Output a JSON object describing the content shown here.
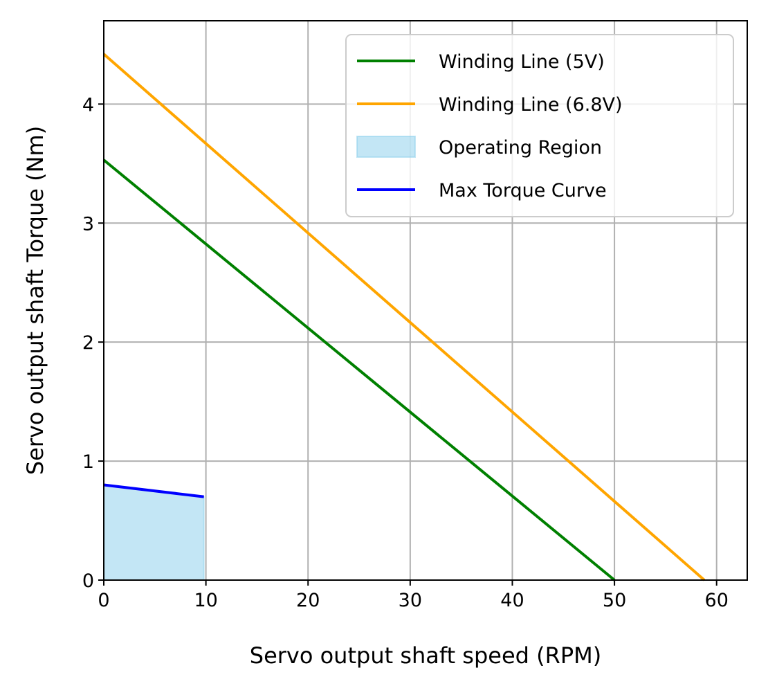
{
  "chart_data": {
    "type": "line",
    "xlabel": "Servo output shaft speed (RPM)",
    "ylabel": "Servo output shaft Torque (Nm)",
    "xlim": [
      0,
      63
    ],
    "ylim": [
      0,
      4.7
    ],
    "xticks": [
      0,
      10,
      20,
      30,
      40,
      50,
      60
    ],
    "yticks": [
      0,
      1,
      2,
      3,
      4
    ],
    "grid": true,
    "legend_position": "top-right",
    "series": [
      {
        "name": "Winding Line (5V)",
        "kind": "line",
        "color": "#008000",
        "x": [
          0,
          50
        ],
        "y": [
          3.53,
          0
        ]
      },
      {
        "name": "Winding Line (6.8V)",
        "kind": "line",
        "color": "#ffa500",
        "x": [
          0,
          58.8
        ],
        "y": [
          4.42,
          0
        ]
      },
      {
        "name": "Operating Region",
        "kind": "area",
        "color": "#87ceeb",
        "x": [
          0,
          9.8
        ],
        "y_top": [
          0.8,
          0.7
        ],
        "y_bottom": [
          0,
          0
        ]
      },
      {
        "name": "Max Torque Curve",
        "kind": "line",
        "color": "#0000ff",
        "x": [
          0,
          9.8
        ],
        "y": [
          0.8,
          0.7
        ]
      }
    ]
  }
}
